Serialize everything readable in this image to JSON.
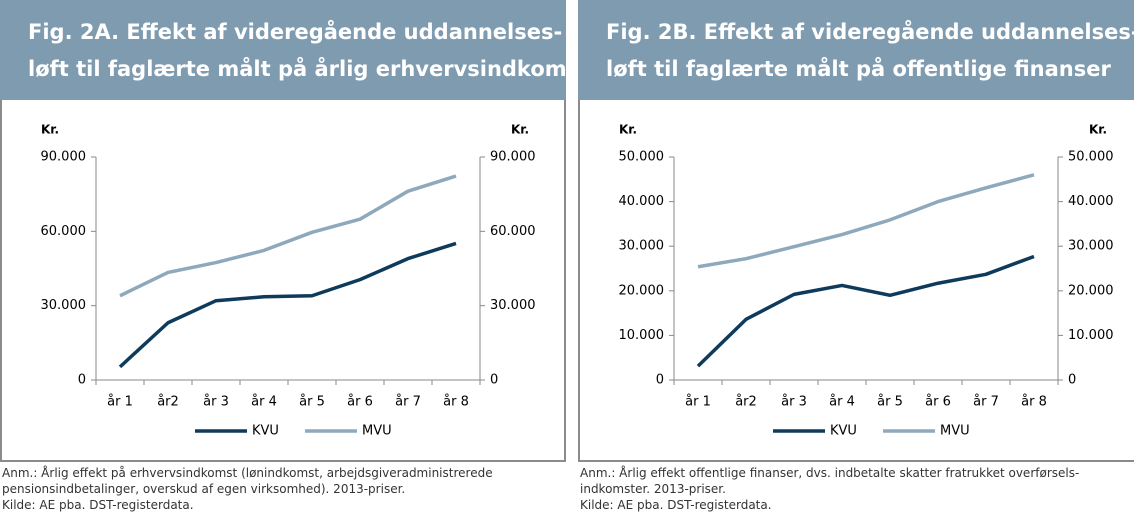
{
  "chart_data": [
    {
      "type": "line",
      "title": [
        "Fig. 2A. Effekt af videregående uddannelses-",
        "løft til faglærte målt på årlig erhvervsindkomst"
      ],
      "ylabel": "Kr.",
      "y2label": "Kr.",
      "categories": [
        "år 1",
        "år2",
        "år 3",
        "år 4",
        "år 5",
        "år 6",
        "år 7",
        "år 8"
      ],
      "series": [
        {
          "name": "KVU",
          "color": "#0e3a5c",
          "values": [
            5300,
            23100,
            32000,
            33600,
            34000,
            40500,
            49000,
            55100
          ]
        },
        {
          "name": "MVU",
          "color": "#8ea8bc",
          "values": [
            34000,
            43400,
            47400,
            52300,
            59600,
            64900,
            76200,
            82300
          ]
        }
      ],
      "ylim": [
        0,
        90000
      ],
      "yticks": [
        0,
        {
          "value": 30000,
          "label": "30.000"
        },
        {
          "value": 60000,
          "label": "60.000"
        },
        {
          "value": 90000,
          "label": "90.000"
        }
      ],
      "y2lim": [
        0,
        90000
      ],
      "y2ticks": [
        0,
        {
          "value": 30000,
          "label": "30.000"
        },
        {
          "value": 60000,
          "label": "60.000"
        },
        {
          "value": 90000,
          "label": "90.000"
        }
      ],
      "legend": "bottom",
      "note": [
        "Anm.: Årlig effekt på erhvervsindkomst (lønindkomst, arbejdsgiveradministrerede",
        "pensionsindbetalinger, overskud af egen virksomhed).  2013-priser.",
        "Kilde: AE pba. DST-registerdata."
      ]
    },
    {
      "type": "line",
      "title": [
        "Fig. 2B. Effekt af videregående uddannelses-",
        "løft til faglærte målt på offentlige finanser"
      ],
      "ylabel": "Kr.",
      "y2label": "Kr.",
      "categories": [
        "år 1",
        "år2",
        "år 3",
        "år 4",
        "år 5",
        "år 6",
        "år 7",
        "år 8"
      ],
      "series": [
        {
          "name": "KVU",
          "color": "#0e3a5c",
          "values": [
            3100,
            13600,
            19200,
            21200,
            19000,
            21700,
            23700,
            27700
          ]
        },
        {
          "name": "MVU",
          "color": "#8ea8bc",
          "values": [
            25400,
            27200,
            29900,
            32600,
            35900,
            40000,
            43100,
            46000
          ]
        }
      ],
      "ylim": [
        0,
        50000
      ],
      "yticks": [
        0,
        {
          "value": 10000,
          "label": "10.000"
        },
        {
          "value": 20000,
          "label": "20.000"
        },
        {
          "value": 30000,
          "label": "30.000"
        },
        {
          "value": 40000,
          "label": "40.000"
        },
        {
          "value": 50000,
          "label": "50.000"
        }
      ],
      "y2lim": [
        0,
        50000
      ],
      "y2ticks": [
        0,
        {
          "value": 10000,
          "label": "10.000"
        },
        {
          "value": 20000,
          "label": "20.000"
        },
        {
          "value": 30000,
          "label": "30.000"
        },
        {
          "value": 40000,
          "label": "40.000"
        },
        {
          "value": 50000,
          "label": "50.000"
        }
      ],
      "legend": "bottom",
      "note": [
        "Anm.: Årlig effekt offentlige finanser, dvs. indbetalte skatter fratrukket overførsels-",
        "indkomster.  2013-priser.",
        "Kilde: AE pba. DST-registerdata."
      ]
    }
  ]
}
